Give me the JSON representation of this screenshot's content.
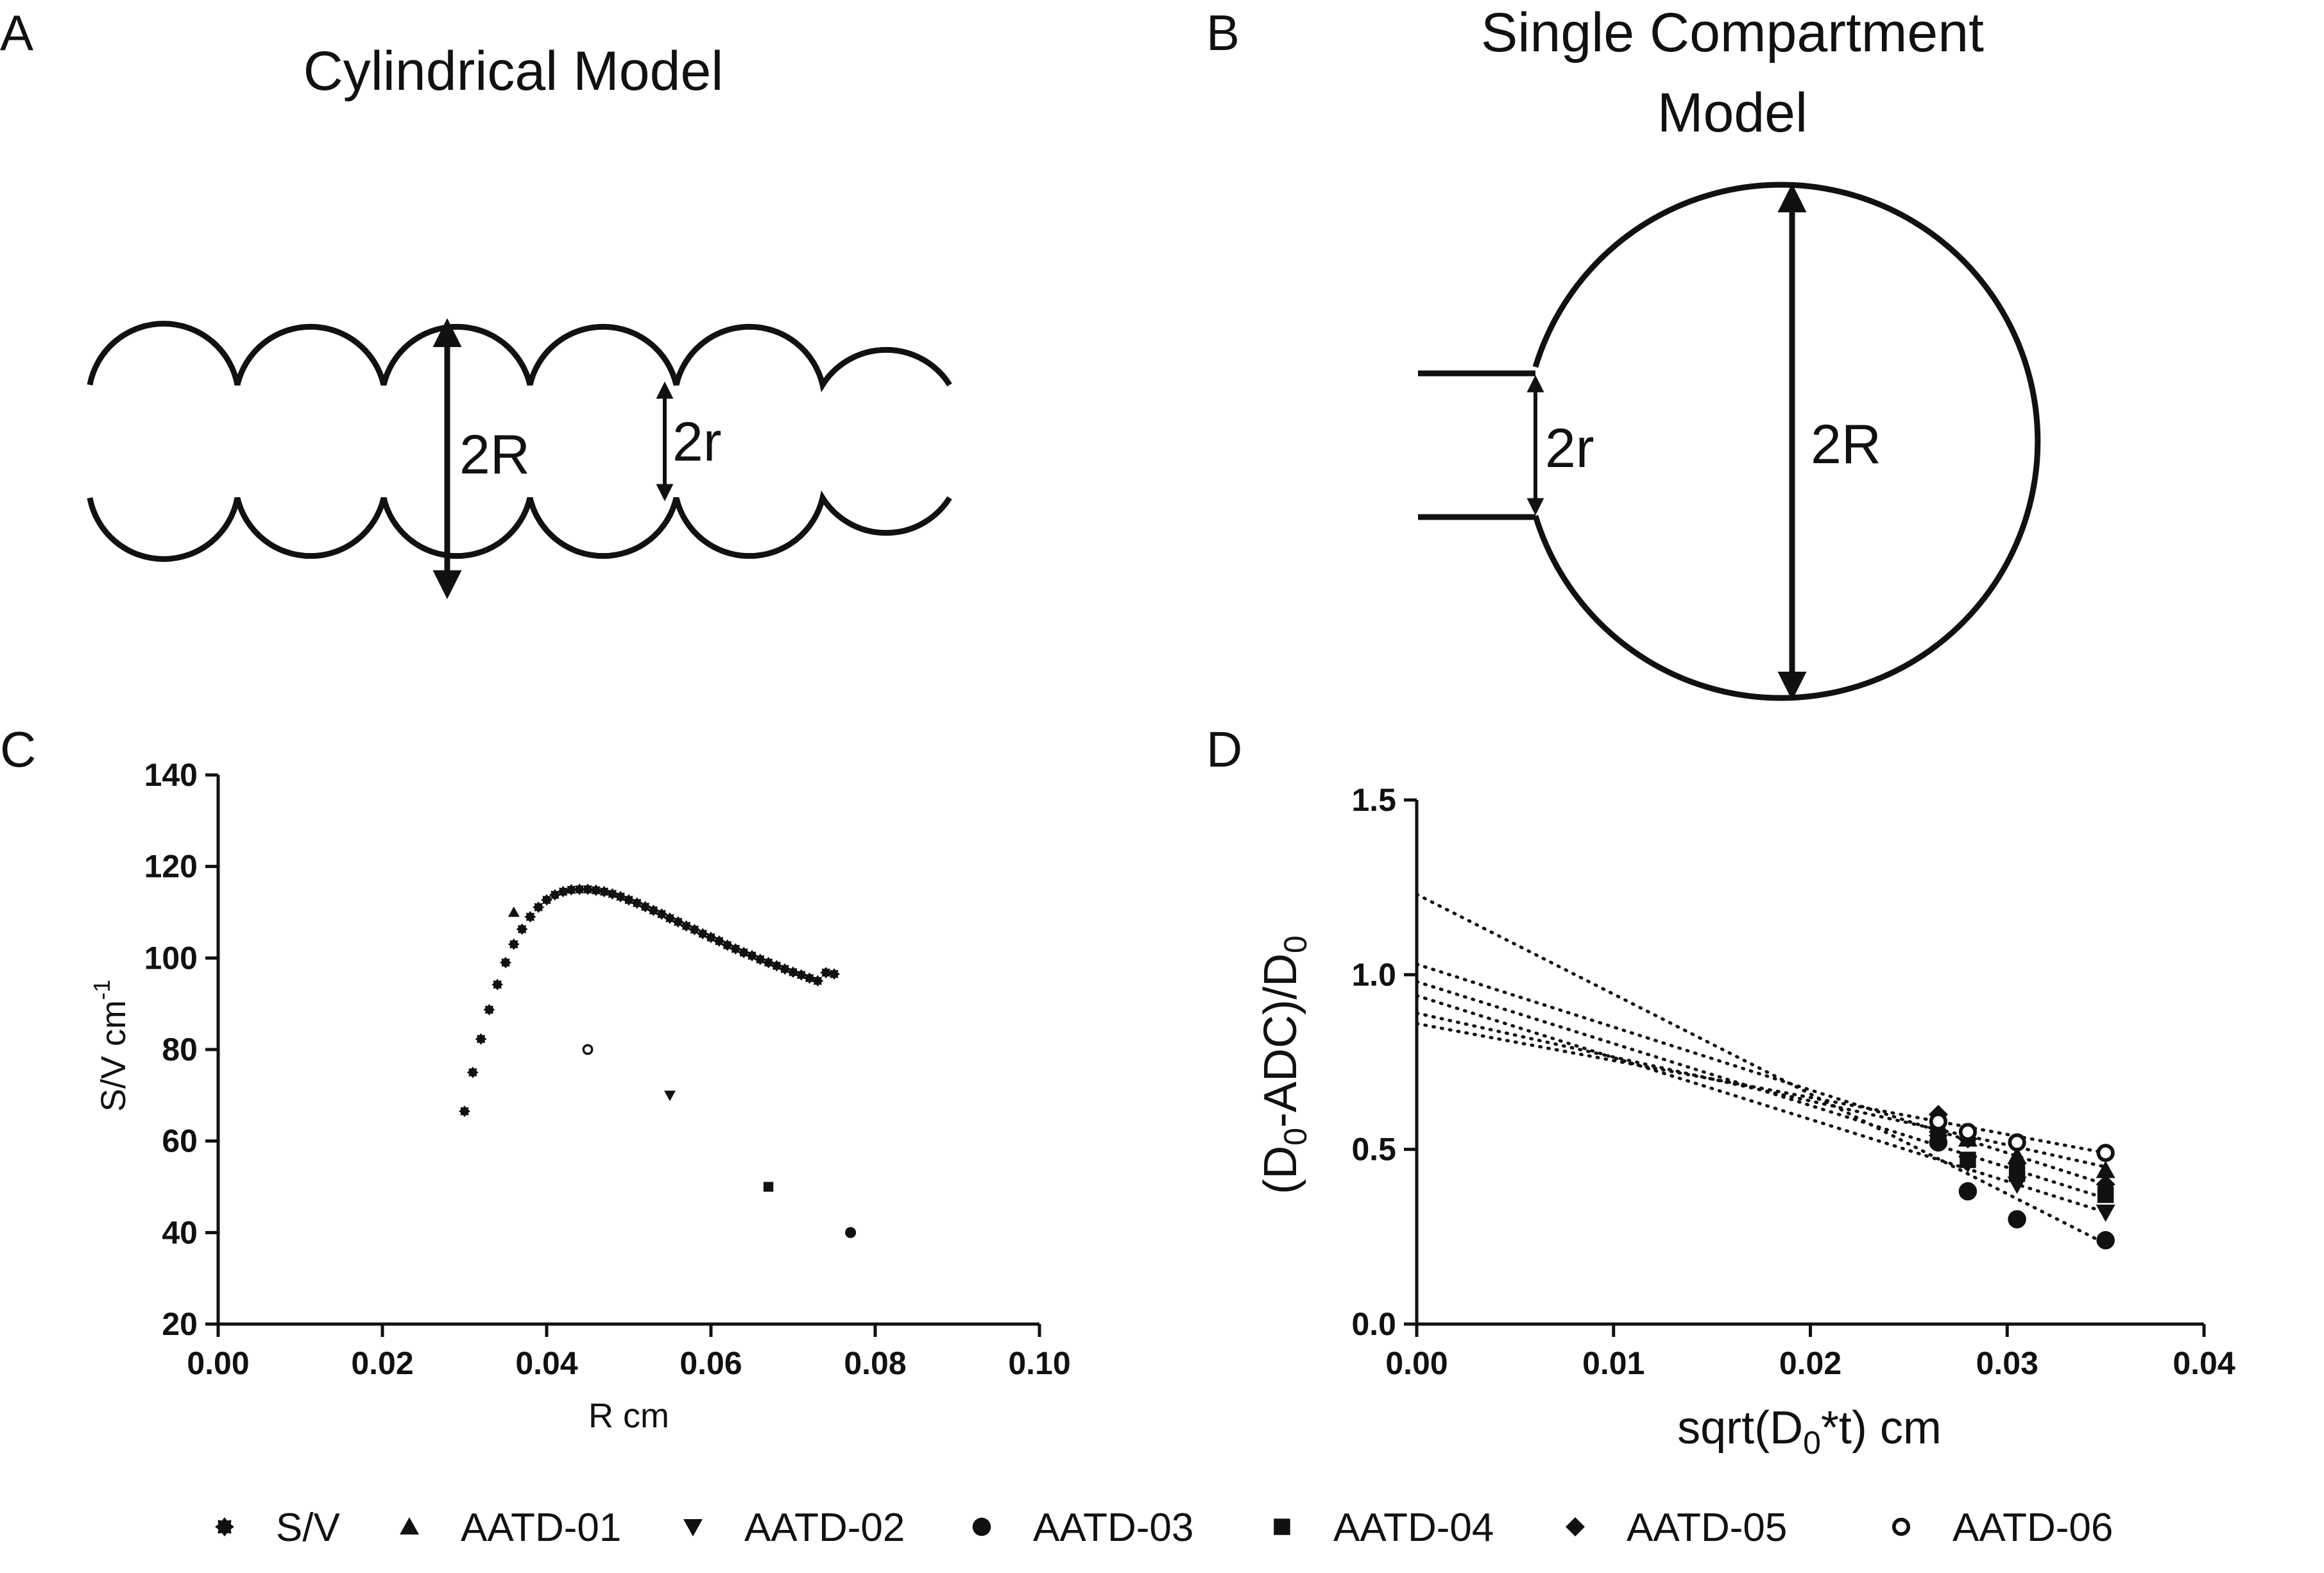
{
  "panels": {
    "a": {
      "letter": "A",
      "title": "Cylindrical Model",
      "label_big": "2R",
      "label_small": "2r"
    },
    "b": {
      "letter": "B",
      "title_line1": "Single Compartment",
      "title_line2": "Model",
      "label_big": "2R",
      "label_small": "2r"
    },
    "c": {
      "letter": "C"
    },
    "d": {
      "letter": "D"
    }
  },
  "chart_data": [
    {
      "id": "C",
      "type": "scatter",
      "title": "",
      "xlabel": "R cm",
      "ylabel": "S/V cm",
      "ylabel_superscript": "-1",
      "xlim": [
        0,
        0.1
      ],
      "ylim": [
        20,
        140
      ],
      "xticks": [
        0,
        0.02,
        0.04,
        0.06,
        0.08,
        0.1
      ],
      "xtick_labels": [
        "0.00",
        "0.02",
        "0.04",
        "0.06",
        "0.08",
        "0.10"
      ],
      "yticks": [
        20,
        40,
        60,
        80,
        100,
        120,
        140
      ],
      "ytick_labels": [
        "20",
        "40",
        "60",
        "80",
        "100",
        "120",
        "140"
      ],
      "sv_curve": {
        "name": "S/V",
        "x": [
          0.03,
          0.031,
          0.032,
          0.033,
          0.034,
          0.035,
          0.036,
          0.037,
          0.038,
          0.039,
          0.04,
          0.041,
          0.042,
          0.043,
          0.044,
          0.045,
          0.046,
          0.047,
          0.048,
          0.049,
          0.05,
          0.051,
          0.052,
          0.053,
          0.054,
          0.055,
          0.056,
          0.057,
          0.058,
          0.059,
          0.06,
          0.061,
          0.062,
          0.063,
          0.064,
          0.065,
          0.066,
          0.067,
          0.068,
          0.069,
          0.07,
          0.071,
          0.072,
          0.073,
          0.074,
          0.075
        ],
        "y": [
          66.5,
          75.0,
          82.3,
          88.7,
          94.2,
          99.0,
          103.0,
          106.3,
          109.0,
          111.1,
          112.7,
          113.8,
          114.5,
          114.9,
          115.0,
          115.0,
          114.8,
          114.5,
          114.0,
          113.4,
          112.7,
          112.0,
          111.2,
          110.4,
          109.6,
          108.7,
          107.9,
          107.0,
          106.2,
          105.3,
          104.5,
          103.7,
          102.8,
          102.0,
          101.2,
          100.5,
          99.7,
          99.0,
          98.3,
          97.6,
          96.9,
          96.3,
          95.6,
          95.0,
          96.8,
          96.5
        ]
      },
      "subjects": [
        {
          "name": "AATD-01",
          "marker": "triangle-up",
          "x": 0.036,
          "y": 110
        },
        {
          "name": "AATD-02",
          "marker": "triangle-down",
          "x": 0.055,
          "y": 70
        },
        {
          "name": "AATD-03",
          "marker": "circle",
          "x": 0.077,
          "y": 40
        },
        {
          "name": "AATD-04",
          "marker": "square",
          "x": 0.067,
          "y": 50
        },
        {
          "name": "AATD-06",
          "marker": "circle-open",
          "x": 0.045,
          "y": 80
        }
      ]
    },
    {
      "id": "D",
      "type": "scatter",
      "title": "",
      "xlabel_parts": [
        "sqrt(D",
        "0",
        "*t) cm"
      ],
      "ylabel_parts": [
        "(D",
        "0",
        "-ADC)/D",
        "0"
      ],
      "xlim": [
        0,
        0.04
      ],
      "ylim": [
        0,
        1.5
      ],
      "xticks": [
        0,
        0.01,
        0.02,
        0.03,
        0.04
      ],
      "xtick_labels": [
        "0.00",
        "0.01",
        "0.02",
        "0.03",
        "0.04"
      ],
      "yticks": [
        0,
        0.5,
        1.0,
        1.5
      ],
      "ytick_labels": [
        "0.0",
        "0.5",
        "1.0",
        "1.5"
      ],
      "x": [
        0.0265,
        0.028,
        0.0305,
        0.035
      ],
      "series": [
        {
          "name": "AATD-01",
          "marker": "triangle-up",
          "values": [
            0.57,
            0.53,
            0.48,
            0.44
          ],
          "fit": [
            0.89,
            0.45
          ]
        },
        {
          "name": "AATD-02",
          "marker": "triangle-down",
          "values": [
            0.52,
            0.46,
            0.4,
            0.32
          ],
          "fit": [
            0.94,
            0.32
          ]
        },
        {
          "name": "AATD-03",
          "marker": "circle",
          "values": [
            0.52,
            0.38,
            0.3,
            0.24
          ],
          "fit": [
            1.23,
            0.23
          ]
        },
        {
          "name": "AATD-04",
          "marker": "square",
          "values": [
            0.53,
            0.47,
            0.43,
            0.37
          ],
          "fit": [
            0.98,
            0.36
          ]
        },
        {
          "name": "AATD-05",
          "marker": "diamond",
          "values": [
            0.6,
            0.53,
            0.46,
            0.4
          ],
          "fit": [
            1.03,
            0.4
          ]
        },
        {
          "name": "AATD-06",
          "marker": "circle-open",
          "values": [
            0.58,
            0.55,
            0.52,
            0.49
          ],
          "fit": [
            0.86,
            0.49
          ]
        }
      ]
    }
  ],
  "legend": [
    {
      "label": "S/V",
      "marker": "star"
    },
    {
      "label": "AATD-01",
      "marker": "triangle-up"
    },
    {
      "label": "AATD-02",
      "marker": "triangle-down"
    },
    {
      "label": "AATD-03",
      "marker": "circle"
    },
    {
      "label": "AATD-04",
      "marker": "square"
    },
    {
      "label": "AATD-05",
      "marker": "diamond"
    },
    {
      "label": "AATD-06",
      "marker": "circle-open"
    }
  ]
}
